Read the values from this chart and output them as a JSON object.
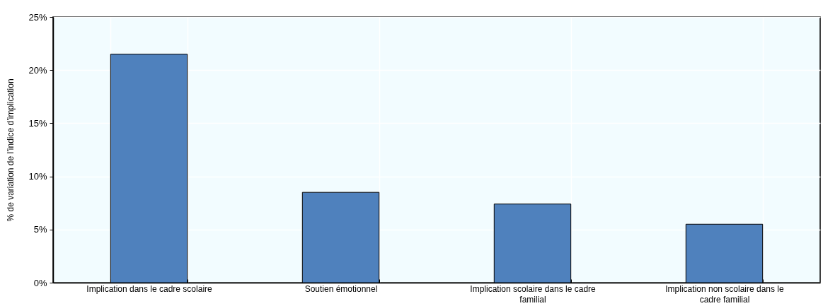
{
  "chart_data": {
    "type": "bar",
    "ylabel": "% de variation de l’indice d’implication",
    "categories": [
      "Implication dans le cadre scolaire",
      "Soutien émotionnel",
      "Implication scolaire dans le cadre familial",
      "Implication non scolaire dans le cadre familial"
    ],
    "values": [
      21.5,
      8.5,
      7.4,
      5.5
    ],
    "color": "#4f81bd",
    "ylim": [
      0,
      25
    ],
    "yticks": [
      {
        "value": 0,
        "label": "0%"
      },
      {
        "value": 5,
        "label": "5%"
      },
      {
        "value": 10,
        "label": "10%"
      },
      {
        "value": 15,
        "label": "15%"
      },
      {
        "value": 20,
        "label": "20%"
      },
      {
        "value": 25,
        "label": "25%"
      }
    ],
    "grid": true
  }
}
